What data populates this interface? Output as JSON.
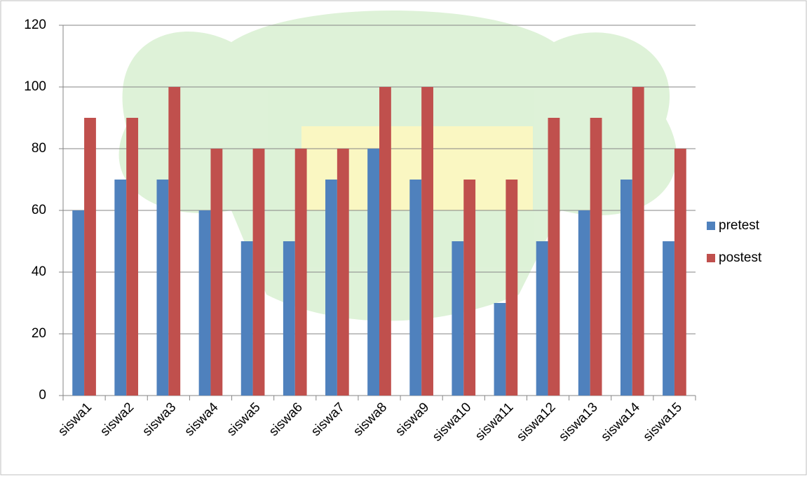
{
  "chart_data": {
    "type": "bar",
    "categories": [
      "siswa1",
      "siswa2",
      "siswa3",
      "siswa4",
      "siswa5",
      "siswa6",
      "siswa7",
      "siswa8",
      "siswa9",
      "siswa10",
      "siswa11",
      "siswa12",
      "siswa13",
      "siswa14",
      "siswa15"
    ],
    "series": [
      {
        "name": "pretest",
        "color": "#4f81bd",
        "values": [
          60,
          70,
          70,
          60,
          50,
          50,
          70,
          80,
          70,
          50,
          30,
          50,
          60,
          70,
          50
        ]
      },
      {
        "name": "postest",
        "color": "#c0504d",
        "values": [
          90,
          90,
          100,
          80,
          80,
          80,
          80,
          100,
          100,
          70,
          70,
          90,
          90,
          100,
          80
        ]
      }
    ],
    "ylim": [
      0,
      120
    ],
    "yticks": [
      0,
      20,
      40,
      60,
      80,
      100,
      120
    ],
    "grid": true,
    "legend": "right"
  }
}
